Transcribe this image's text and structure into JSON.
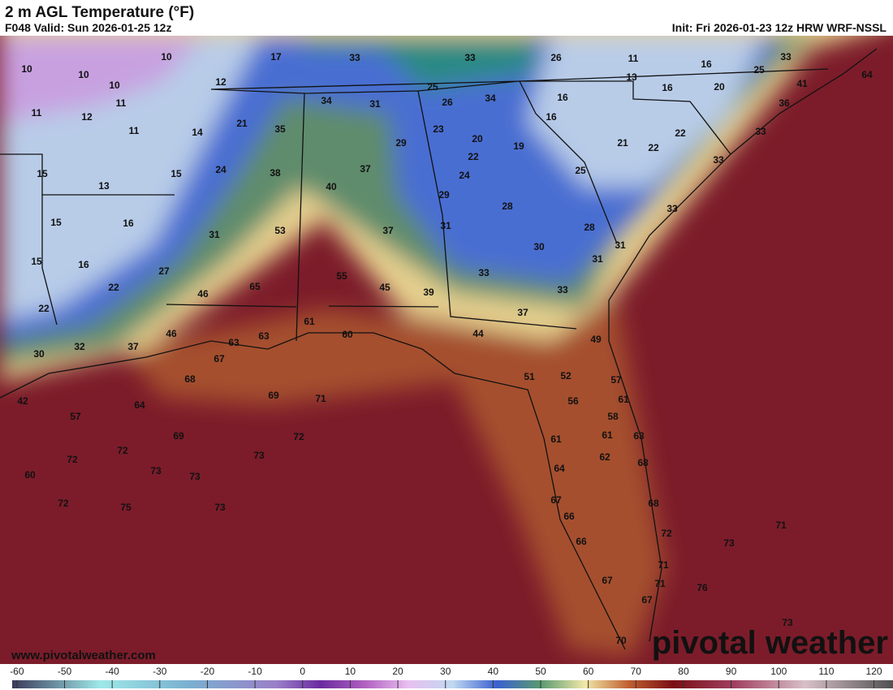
{
  "header": {
    "title": "2 m AGL Temperature (°F)",
    "valid": "F048 Valid: Sun 2026-01-25 12z",
    "init": "Init: Fri 2026-01-23 12z HRW WRF-NSSL"
  },
  "map_labels": [
    10,
    10,
    10,
    10,
    11,
    11,
    12,
    11,
    17,
    33,
    33,
    26,
    11,
    16,
    33,
    25,
    64,
    12,
    13,
    16,
    20,
    41,
    36,
    25,
    34,
    31,
    26,
    34,
    16,
    16,
    21,
    35,
    14,
    23,
    20,
    19,
    21,
    22,
    22,
    33,
    29,
    22,
    33,
    15,
    15,
    24,
    38,
    37,
    24,
    25,
    13,
    40,
    29,
    28,
    33,
    15,
    16,
    31,
    53,
    37,
    31,
    28,
    15,
    16,
    27,
    30,
    31,
    31,
    55,
    45,
    65,
    33,
    22,
    46,
    39,
    33,
    22,
    37,
    61,
    60,
    63,
    46,
    63,
    44,
    49,
    30,
    32,
    37,
    67,
    68,
    51,
    52,
    57,
    69,
    71,
    42,
    64,
    56,
    61,
    57,
    58,
    69,
    72,
    61,
    61,
    63,
    72,
    72,
    73,
    62,
    68,
    73,
    73,
    60,
    64,
    72,
    75,
    73,
    67,
    68,
    66,
    72,
    71,
    66,
    73,
    71,
    67,
    71,
    76,
    67,
    73,
    70
  ],
  "colorbar": {
    "lim": [
      -61,
      124
    ],
    "ticks": [
      -60,
      -50,
      -40,
      -30,
      -20,
      -10,
      0,
      10,
      20,
      30,
      40,
      50,
      60,
      70,
      80,
      90,
      100,
      110,
      120
    ]
  },
  "footer": {
    "website": "www.pivotalweather.com",
    "logo": "pivotal weather"
  }
}
